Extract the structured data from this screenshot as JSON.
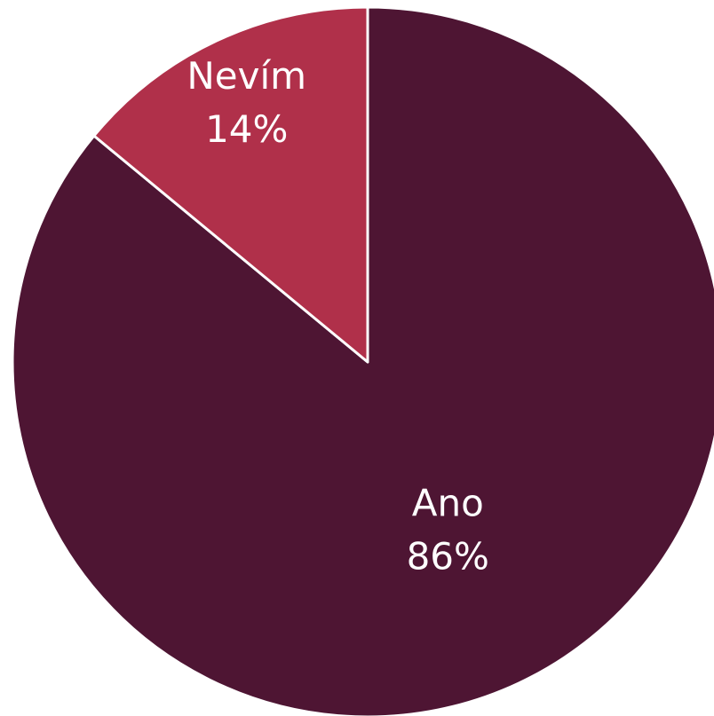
{
  "chart_data": {
    "type": "pie",
    "categories": [
      "Ano",
      "Nevím"
    ],
    "values": [
      86,
      14
    ],
    "value_labels": [
      "86%",
      "14%"
    ],
    "colors": [
      "#4e1533",
      "#b0304a"
    ]
  }
}
